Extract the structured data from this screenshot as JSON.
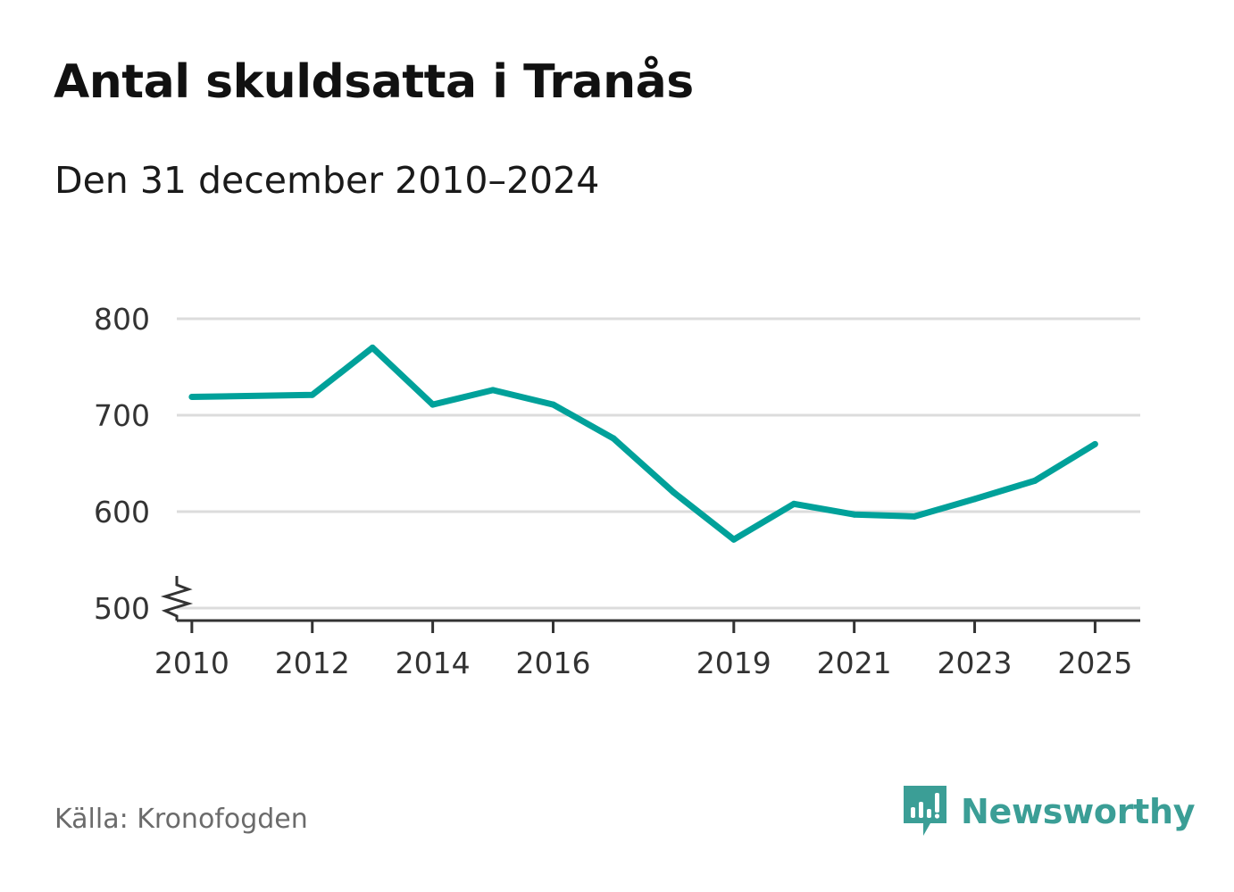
{
  "title": "Antal skuldsatta i Tranås",
  "subtitle": "Den 31 december 2010–2024",
  "source": "Källa: Kronofogden",
  "brand": {
    "name": "Newsworthy",
    "icon": "newsworthy-logo-icon",
    "color": "#3b9e96"
  },
  "chart_data": {
    "type": "line",
    "title": "Antal skuldsatta i Tranås",
    "subtitle": "Den 31 december 2010–2024",
    "xlabel": "",
    "ylabel": "",
    "x": [
      2010,
      2012,
      2013,
      2014,
      2015,
      2016,
      2017,
      2018,
      2019,
      2020,
      2021,
      2022,
      2023,
      2024,
      2025
    ],
    "values": [
      719,
      721,
      770,
      711,
      726,
      711,
      676,
      620,
      571,
      608,
      597,
      595,
      613,
      632,
      670
    ],
    "series": [
      {
        "name": "Antal skuldsatta",
        "color": "#00a19a",
        "values": [
          719,
          721,
          770,
          711,
          726,
          711,
          676,
          620,
          571,
          608,
          597,
          595,
          613,
          632,
          670
        ]
      }
    ],
    "xticks": [
      "2010",
      "2012",
      "2014",
      "2016",
      "2019",
      "2021",
      "2023",
      "2025"
    ],
    "yticks": [
      "500",
      "600",
      "700",
      "800"
    ],
    "xlim": [
      2009.75,
      2025.75
    ],
    "ylim": [
      487,
      800
    ],
    "grid": true,
    "axis_break": true,
    "colors": {
      "line": "#00a19a",
      "grid": "#dcdcdc",
      "axis": "#333333"
    }
  }
}
